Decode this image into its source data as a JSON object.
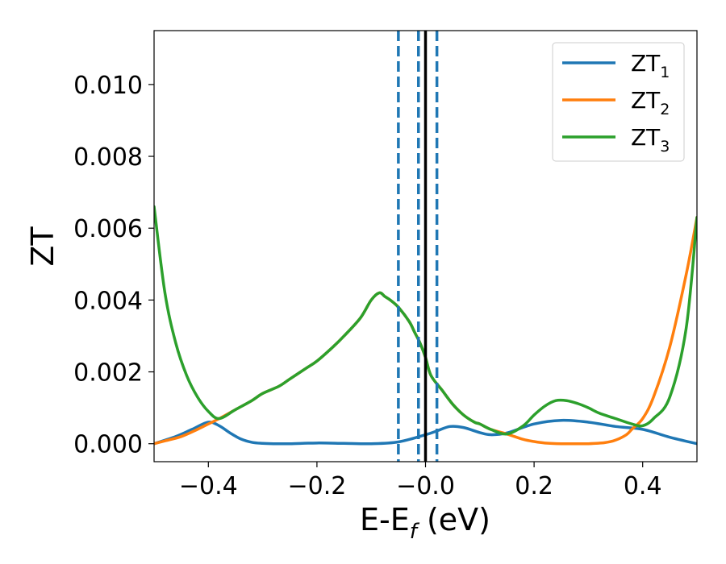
{
  "chart_data": {
    "type": "line",
    "xlabel": {
      "main": "E-E",
      "sub": "f",
      "unit": " (eV)"
    },
    "ylabel": "ZT",
    "xlim": [
      -0.5,
      0.5
    ],
    "ylim": [
      -0.0005,
      0.0115
    ],
    "x_ticks": [
      -0.4,
      -0.2,
      0.0,
      0.2,
      0.4
    ],
    "x_tick_labels": [
      "−0.4",
      "−0.2",
      "−0.0",
      "0.2",
      "0.4"
    ],
    "y_ticks": [
      0.0,
      0.002,
      0.004,
      0.006,
      0.008,
      0.01
    ],
    "y_tick_labels": [
      "0.000",
      "0.002",
      "0.004",
      "0.006",
      "0.008",
      "0.010"
    ],
    "grid": false,
    "legend_position": "top-right",
    "vertical_lines": [
      {
        "x": -0.05,
        "style": "dashed",
        "color": "#1f77b4"
      },
      {
        "x": -0.013,
        "style": "dashed",
        "color": "#1f77b4"
      },
      {
        "x": 0.021,
        "style": "dashed",
        "color": "#1f77b4"
      },
      {
        "x": 0.0,
        "style": "solid",
        "color": "#000000"
      }
    ],
    "series": [
      {
        "name": "ZT",
        "sub": "1",
        "color": "#1f77b4",
        "x": [
          -0.5,
          -0.46,
          -0.43,
          -0.4,
          -0.38,
          -0.36,
          -0.34,
          -0.32,
          -0.3,
          -0.28,
          -0.25,
          -0.2,
          -0.15,
          -0.1,
          -0.05,
          0.0,
          0.02,
          0.045,
          0.07,
          0.1,
          0.12,
          0.15,
          0.2,
          0.25,
          0.3,
          0.35,
          0.4,
          0.45,
          0.5
        ],
        "y": [
          0.0,
          0.0002,
          0.0004,
          0.0006,
          0.0005,
          0.0003,
          0.00013,
          4e-05,
          1e-05,
          0.0,
          0.0,
          2e-05,
          1e-05,
          0.0,
          5e-05,
          0.00025,
          0.00035,
          0.00048,
          0.00045,
          0.00031,
          0.00025,
          0.0003,
          0.00055,
          0.00065,
          0.0006,
          0.00048,
          0.0004,
          0.00018,
          0.0
        ]
      },
      {
        "name": "ZT",
        "sub": "2",
        "color": "#ff7f0e",
        "x": [
          -0.5,
          -0.48,
          -0.45,
          -0.42,
          -0.4,
          -0.38,
          -0.35,
          -0.32,
          -0.3,
          -0.27,
          -0.25,
          -0.22,
          -0.2,
          -0.17,
          -0.15,
          -0.12,
          -0.1,
          -0.085,
          -0.075,
          -0.065,
          -0.05,
          -0.03,
          -0.02,
          -0.01,
          0.0,
          0.01,
          0.03,
          0.05,
          0.07,
          0.09,
          0.1,
          0.12,
          0.15,
          0.18,
          0.2,
          0.22,
          0.25,
          0.28,
          0.3,
          0.33,
          0.35,
          0.37,
          0.38,
          0.4,
          0.42,
          0.45,
          0.48,
          0.5
        ],
        "y": [
          0.0,
          8e-05,
          0.0002,
          0.0004,
          0.00055,
          0.0007,
          0.00095,
          0.0012,
          0.0014,
          0.0016,
          0.0018,
          0.0021,
          0.0023,
          0.0027,
          0.003,
          0.0035,
          0.004,
          0.0042,
          0.0041,
          0.004,
          0.0038,
          0.0034,
          0.0031,
          0.0028,
          0.0024,
          0.0019,
          0.0015,
          0.0011,
          0.0008,
          0.0006,
          0.00055,
          0.0004,
          0.00027,
          0.00012,
          6e-05,
          2e-05,
          0.0,
          0.0,
          0.0,
          3e-05,
          0.0001,
          0.00025,
          0.0004,
          0.0007,
          0.0013,
          0.0027,
          0.0047,
          0.0063
        ]
      },
      {
        "name": "ZT",
        "sub": "3",
        "color": "#2ca02c",
        "x": [
          -0.5,
          -0.48,
          -0.46,
          -0.44,
          -0.42,
          -0.4,
          -0.38,
          -0.35,
          -0.32,
          -0.3,
          -0.27,
          -0.25,
          -0.22,
          -0.2,
          -0.17,
          -0.15,
          -0.12,
          -0.1,
          -0.085,
          -0.075,
          -0.065,
          -0.05,
          -0.03,
          -0.02,
          -0.01,
          0.0,
          0.01,
          0.03,
          0.05,
          0.07,
          0.09,
          0.1,
          0.12,
          0.15,
          0.18,
          0.2,
          0.22,
          0.24,
          0.26,
          0.28,
          0.3,
          0.32,
          0.35,
          0.38,
          0.4,
          0.42,
          0.45,
          0.48,
          0.5
        ],
        "y": [
          0.0066,
          0.0042,
          0.0028,
          0.0019,
          0.0013,
          0.0009,
          0.0007,
          0.00095,
          0.0012,
          0.0014,
          0.0016,
          0.0018,
          0.0021,
          0.0023,
          0.0027,
          0.003,
          0.0035,
          0.004,
          0.0042,
          0.0041,
          0.004,
          0.0038,
          0.0034,
          0.0031,
          0.0028,
          0.0024,
          0.0019,
          0.0015,
          0.0011,
          0.0008,
          0.0006,
          0.00055,
          0.0004,
          0.00027,
          0.0005,
          0.0008,
          0.00105,
          0.0012,
          0.0012,
          0.00112,
          0.001,
          0.00085,
          0.0007,
          0.00055,
          0.0005,
          0.0007,
          0.0013,
          0.0032,
          0.0063
        ]
      }
    ]
  }
}
